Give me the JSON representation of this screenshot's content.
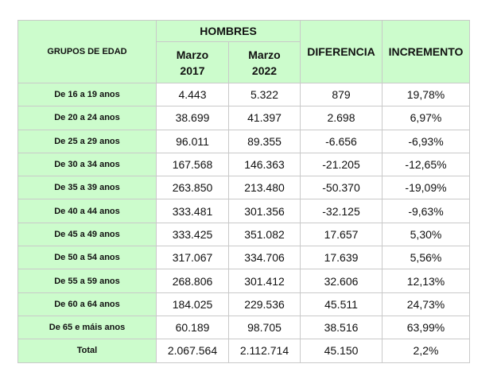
{
  "table": {
    "header": {
      "group": "GRUPOS DE EDAD",
      "men": "HOMBRES",
      "col1": {
        "month": "Marzo",
        "year": "2017"
      },
      "col2": {
        "month": "Marzo",
        "year": "2022"
      },
      "diff": "DIFERENCIA",
      "inc": "INCREMENTO"
    },
    "rows": [
      [
        "De 16 a 19 anos",
        "4.443",
        "5.322",
        "879",
        "19,78%"
      ],
      [
        "De 20 a 24 anos",
        "38.699",
        "41.397",
        "2.698",
        "6,97%"
      ],
      [
        "De 25 a 29 anos",
        "96.011",
        "89.355",
        "-6.656",
        "-6,93%"
      ],
      [
        "De 30 a 34 anos",
        "167.568",
        "146.363",
        "-21.205",
        "-12,65%"
      ],
      [
        "De 35 a 39 anos",
        "263.850",
        "213.480",
        "-50.370",
        "-19,09%"
      ],
      [
        "De 40 a 44 anos",
        "333.481",
        "301.356",
        "-32.125",
        "-9,63%"
      ],
      [
        "De 45 a 49 anos",
        "333.425",
        "351.082",
        "17.657",
        "5,30%"
      ],
      [
        "De 50 a 54 anos",
        "317.067",
        "334.706",
        "17.639",
        "5,56%"
      ],
      [
        "De 55 a 59 anos",
        "268.806",
        "301.412",
        "32.606",
        "12,13%"
      ],
      [
        "De 60 a 64 anos",
        "184.025",
        "229.536",
        "45.511",
        "24,73%"
      ],
      [
        "De 65 e máis anos",
        "60.189",
        "98.705",
        "38.516",
        "63,99%"
      ],
      [
        "Total",
        "2.067.564",
        "2.112.714",
        "45.150",
        "2,2%"
      ]
    ]
  }
}
